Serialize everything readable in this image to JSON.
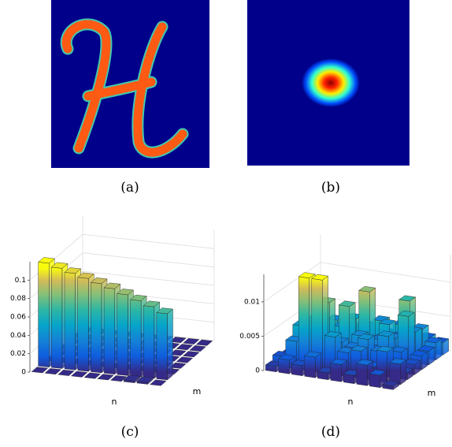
{
  "captions": [
    "(a)",
    "(b)",
    "(c)",
    "(d)"
  ],
  "chart_data": [
    {
      "type": "bar3d",
      "xlabel": "n",
      "ylabel": "m",
      "colormap": "parula",
      "grid": true,
      "zlim": [
        0,
        0.12
      ],
      "zticks": [
        0,
        0.02,
        0.04,
        0.06,
        0.08,
        0.1
      ],
      "values": [
        [
          0,
          0,
          0,
          0,
          0,
          0,
          0,
          0.002,
          0.002,
          0
        ],
        [
          0.113,
          0.109,
          0.105,
          0.101,
          0.097,
          0.093,
          0.088,
          0.083,
          0.078,
          0.072
        ],
        [
          0,
          0,
          0,
          0,
          0,
          0,
          0,
          0,
          0.001,
          0
        ],
        [
          0,
          0,
          0,
          0,
          0,
          0,
          0,
          0,
          0,
          0
        ],
        [
          0,
          0,
          0,
          0,
          0,
          0,
          0,
          0,
          0,
          0
        ],
        [
          0,
          0,
          0,
          0,
          0,
          0,
          0,
          0,
          0,
          0
        ],
        [
          0,
          0,
          0,
          0,
          0,
          0,
          0,
          0,
          0,
          0
        ],
        [
          0,
          0,
          0,
          0,
          0,
          0,
          0,
          0,
          0,
          0
        ]
      ]
    },
    {
      "type": "bar3d",
      "xlabel": "n",
      "ylabel": "m",
      "colormap": "parula",
      "grid": true,
      "zlim": [
        0,
        0.014
      ],
      "zticks": [
        0,
        0.005,
        0.01
      ],
      "values": [
        [
          0.0008,
          0.002,
          0.0015,
          0.003,
          0.001,
          0.0025,
          0.0012,
          0.003,
          0.0018,
          0.0005
        ],
        [
          0.0015,
          0.004,
          0.0135,
          0.0135,
          0.0055,
          0.0035,
          0.004,
          0.002,
          0.0045,
          0.003
        ],
        [
          0.001,
          0.0055,
          0.0065,
          0.0095,
          0.004,
          0.0035,
          0.005,
          0.0035,
          0.002,
          0.001
        ],
        [
          0.002,
          0.0035,
          0.0085,
          0.003,
          0.0085,
          0.0045,
          0.0028,
          0.005,
          0.003,
          0.0015
        ],
        [
          0.0012,
          0.005,
          0.002,
          0.0045,
          0.006,
          0.0102,
          0.0035,
          0.004,
          0.0075,
          0.002
        ],
        [
          0.001,
          0.0025,
          0.0045,
          0.0038,
          0.004,
          0.0025,
          0.005,
          0.003,
          0.0045,
          0.002
        ],
        [
          0.0005,
          0.003,
          0.0015,
          0.002,
          0.0035,
          0.0045,
          0.0025,
          0.008,
          0.0042,
          0.0025
        ],
        [
          0.0005,
          0.001,
          0.002,
          0.001,
          0.0015,
          0.002,
          0.0035,
          0.0015,
          0.0022,
          0.0018
        ]
      ]
    }
  ]
}
